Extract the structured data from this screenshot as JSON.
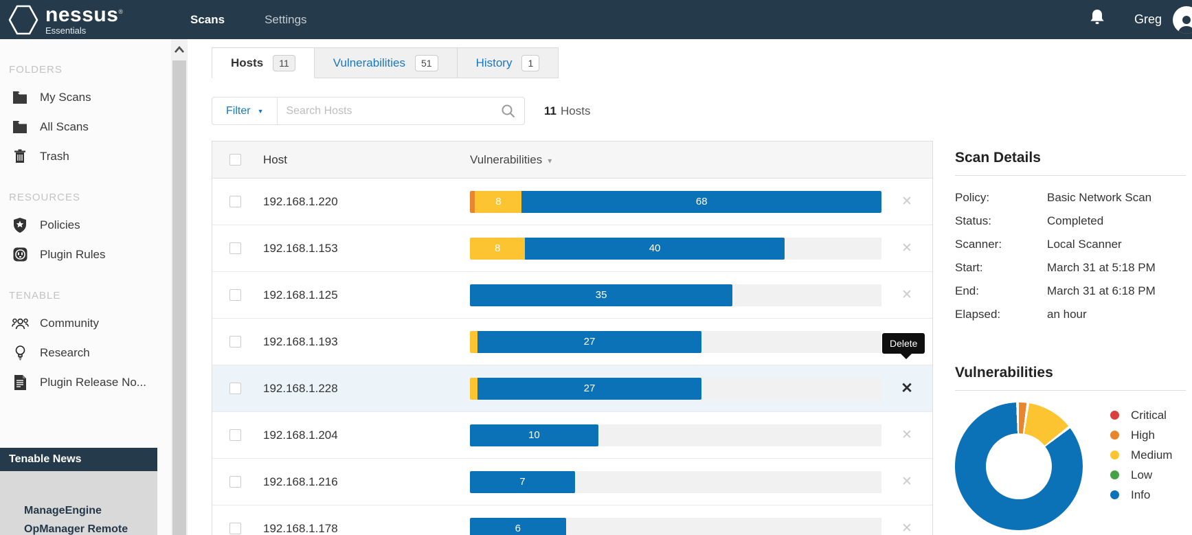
{
  "topbar": {
    "brand": {
      "name": "nessus",
      "mark": "®",
      "sub": "Essentials"
    },
    "nav": [
      {
        "label": "Scans",
        "active": true
      },
      {
        "label": "Settings",
        "active": false
      }
    ],
    "user": "Greg"
  },
  "sidebar": {
    "sections": [
      {
        "title": "FOLDERS",
        "items": [
          {
            "label": "My Scans",
            "icon": "folder"
          },
          {
            "label": "All Scans",
            "icon": "folder"
          },
          {
            "label": "Trash",
            "icon": "trash"
          }
        ]
      },
      {
        "title": "RESOURCES",
        "items": [
          {
            "label": "Policies",
            "icon": "shield-star"
          },
          {
            "label": "Plugin Rules",
            "icon": "plug"
          }
        ]
      },
      {
        "title": "TENABLE",
        "items": [
          {
            "label": "Community",
            "icon": "people"
          },
          {
            "label": "Research",
            "icon": "lightbulb"
          },
          {
            "label": "Plugin Release No...",
            "icon": "document"
          }
        ]
      }
    ],
    "news": {
      "title": "Tenable News",
      "headline": "ManageEngine OpManager Remote"
    }
  },
  "tabs": [
    {
      "label": "Hosts",
      "count": "11",
      "active": true
    },
    {
      "label": "Vulnerabilities",
      "count": "51",
      "active": false
    },
    {
      "label": "History",
      "count": "1",
      "active": false
    }
  ],
  "toolbar": {
    "filter_label": "Filter",
    "search_placeholder": "Search Hosts",
    "search_value": "",
    "results_count": "11",
    "results_label": "Hosts"
  },
  "table": {
    "columns": [
      "Host",
      "Vulnerabilities"
    ],
    "delete_tooltip": "Delete",
    "rows": [
      {
        "host": "192.168.1.220",
        "highlight": false,
        "segments": [
          {
            "severity": "high",
            "value": 1,
            "label": ""
          },
          {
            "severity": "medium",
            "value": 8,
            "label": "8"
          },
          {
            "severity": "info",
            "value": 68,
            "label": "68"
          }
        ]
      },
      {
        "host": "192.168.1.153",
        "highlight": false,
        "segments": [
          {
            "severity": "medium",
            "value": 8,
            "label": "8"
          },
          {
            "severity": "info",
            "value": 40,
            "label": "40"
          }
        ]
      },
      {
        "host": "192.168.1.125",
        "highlight": false,
        "segments": [
          {
            "severity": "info",
            "value": 35,
            "label": "35"
          }
        ]
      },
      {
        "host": "192.168.1.193",
        "highlight": false,
        "segments": [
          {
            "severity": "medium",
            "value": 1,
            "label": ""
          },
          {
            "severity": "info",
            "value": 27,
            "label": "27"
          }
        ]
      },
      {
        "host": "192.168.1.228",
        "highlight": true,
        "segments": [
          {
            "severity": "medium",
            "value": 1,
            "label": ""
          },
          {
            "severity": "info",
            "value": 27,
            "label": "27"
          }
        ]
      },
      {
        "host": "192.168.1.204",
        "highlight": false,
        "segments": [
          {
            "severity": "info",
            "value": 10,
            "label": "10"
          }
        ]
      },
      {
        "host": "192.168.1.216",
        "highlight": false,
        "segments": [
          {
            "severity": "info",
            "value": 7,
            "label": "7"
          }
        ]
      },
      {
        "host": "192.168.1.178",
        "highlight": false,
        "segments": [
          {
            "severity": "info",
            "value": 6,
            "label": "6"
          }
        ]
      }
    ]
  },
  "details": {
    "title": "Scan Details",
    "fields": [
      {
        "label": "Policy:",
        "value": "Basic Network Scan"
      },
      {
        "label": "Status:",
        "value": "Completed"
      },
      {
        "label": "Scanner:",
        "value": "Local Scanner"
      },
      {
        "label": "Start:",
        "value": "March 31 at 5:18 PM"
      },
      {
        "label": "End:",
        "value": "March 31 at 6:18 PM"
      },
      {
        "label": "Elapsed:",
        "value": "an hour"
      }
    ]
  },
  "chart_data": {
    "type": "pie",
    "donut": true,
    "title": "Vulnerabilities",
    "legend_position": "right",
    "series": [
      {
        "label": "Critical",
        "severity": "critical",
        "value": 0
      },
      {
        "label": "High",
        "severity": "high",
        "value": 1
      },
      {
        "label": "Medium",
        "severity": "medium",
        "value": 6
      },
      {
        "label": "Low",
        "severity": "low",
        "value": 0
      },
      {
        "label": "Info",
        "severity": "info",
        "value": 44
      }
    ],
    "total": 51
  },
  "colors": {
    "topbar_bg": "#253B4B",
    "link_blue": "#1878C0",
    "row_highlight": "#EDF4F9",
    "bar_track": "#F1F1F1",
    "severity": {
      "critical": "#D9413D",
      "high": "#E8862E",
      "medium": "#FDC431",
      "low": "#44A244",
      "info": "#0B72B8"
    }
  }
}
